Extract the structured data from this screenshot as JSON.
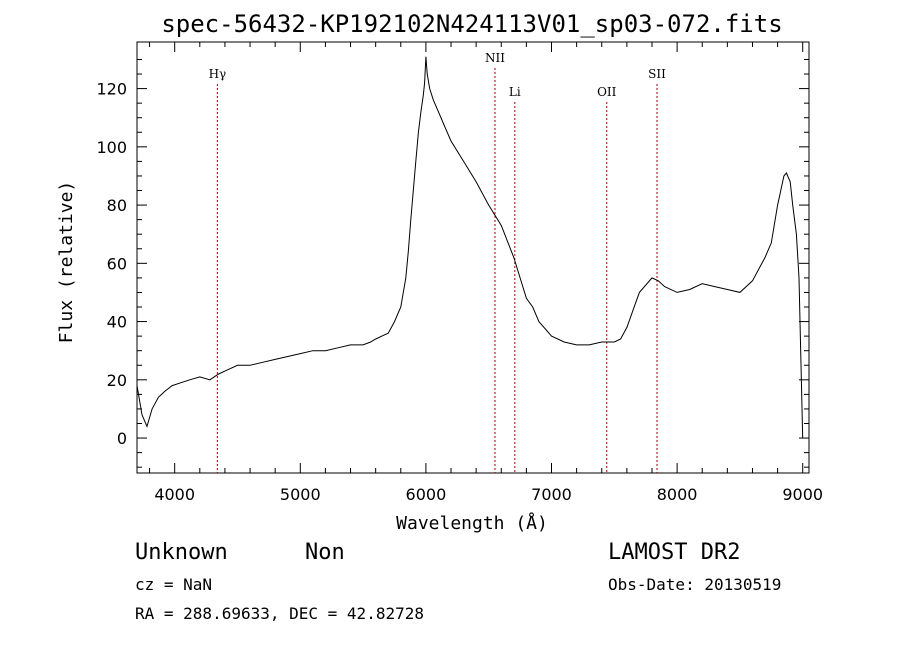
{
  "chart_data": {
    "type": "line",
    "title": "spec-56432-KP192102N424113V01_sp03-072.fits",
    "xlabel": "Wavelength (Å)",
    "ylabel": "Flux (relative)",
    "xlim": [
      3700,
      9050
    ],
    "ylim": [
      -12,
      136
    ],
    "x_ticks": [
      4000,
      5000,
      6000,
      7000,
      8000,
      9000
    ],
    "y_ticks": [
      0,
      20,
      40,
      60,
      80,
      100,
      120
    ],
    "grid": false,
    "legend": "none",
    "series": [
      {
        "x": [
          3700,
          3740,
          3780,
          3820,
          3870,
          3920,
          3980,
          4050,
          4120,
          4200,
          4280,
          4350,
          4400,
          4500,
          4600,
          4700,
          4800,
          4900,
          5000,
          5100,
          5200,
          5300,
          5400,
          5500,
          5560,
          5600,
          5650,
          5700,
          5750,
          5800,
          5820,
          5840,
          5860,
          5880,
          5900,
          5920,
          5940,
          5960,
          5980,
          5990,
          6000,
          6010,
          6030,
          6060,
          6100,
          6150,
          6200,
          6300,
          6400,
          6500,
          6600,
          6700,
          6750,
          6800,
          6850,
          6900,
          7000,
          7100,
          7200,
          7300,
          7400,
          7500,
          7550,
          7600,
          7650,
          7700,
          7800,
          7850,
          7900,
          8000,
          8100,
          8200,
          8300,
          8400,
          8500,
          8600,
          8700,
          8750,
          8800,
          8850,
          8870,
          8900,
          8920,
          8950,
          8970,
          9000
        ],
        "y": [
          18,
          8,
          4,
          10,
          14,
          16,
          18,
          19,
          20,
          21,
          20,
          22,
          23,
          25,
          25,
          26,
          27,
          28,
          29,
          30,
          30,
          31,
          32,
          32,
          33,
          34,
          35,
          36,
          40,
          45,
          50,
          55,
          64,
          75,
          85,
          95,
          105,
          112,
          118,
          122,
          131,
          125,
          120,
          116,
          112,
          107,
          102,
          95,
          88,
          80,
          73,
          62,
          55,
          48,
          45,
          40,
          35,
          33,
          32,
          32,
          33,
          33,
          34,
          38,
          44,
          50,
          55,
          54,
          52,
          50,
          51,
          53,
          52,
          51,
          50,
          54,
          62,
          67,
          80,
          90,
          91,
          88,
          80,
          70,
          55,
          0
        ]
      }
    ],
    "lines": [
      {
        "label": "Hγ",
        "x": 4340
      },
      {
        "label": "NII",
        "x": 6550
      },
      {
        "label": "Li",
        "x": 6708
      },
      {
        "label": "OII",
        "x": 7440
      },
      {
        "label": "SII",
        "x": 7840
      }
    ]
  },
  "footer": {
    "object_class": "Unknown",
    "subclass": "Non",
    "survey": "LAMOST DR2",
    "cz": "cz = NaN",
    "obs_date": "Obs-Date: 20130519",
    "coords": "RA = 288.69633, DEC =  42.82728"
  },
  "colors": {
    "spectrum": "#000000",
    "line_markers": "#aa0000",
    "axes": "#000000"
  }
}
